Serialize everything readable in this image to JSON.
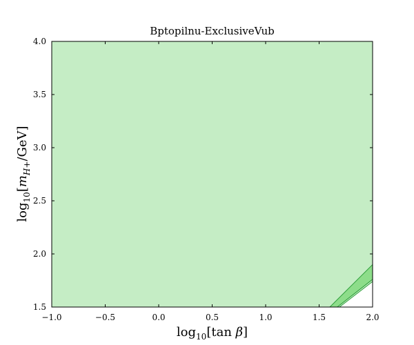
{
  "chart_data": {
    "type": "area",
    "title": "Bptopilnu-ExclusiveVub",
    "xlabel": {
      "prefix": "log",
      "sub": "10",
      "body": "[tan ",
      "var": "β",
      "suffix": "]"
    },
    "ylabel": {
      "prefix": "log",
      "sub": "10",
      "open": "[",
      "var": "m",
      "varsub": "H+",
      "suffix": "/GeV]"
    },
    "xlim": [
      -1.0,
      2.0
    ],
    "ylim": [
      1.5,
      4.0
    ],
    "xticks": [
      -1.0,
      -0.5,
      0.0,
      0.5,
      1.0,
      1.5,
      2.0
    ],
    "xtick_labels": [
      "−1.0",
      "−0.5",
      "0.0",
      "0.5",
      "1.0",
      "1.5",
      "2.0"
    ],
    "yticks": [
      1.5,
      2.0,
      2.5,
      3.0,
      3.5,
      4.0
    ],
    "ytick_labels": [
      "1.5",
      "2.0",
      "2.5",
      "3.0",
      "3.5",
      "4.0"
    ],
    "grid": false,
    "regions": [
      {
        "fill": "#c5edc5",
        "polygon": [
          [
            -1.0,
            1.5
          ],
          [
            1.6,
            1.5
          ],
          [
            2.0,
            1.9
          ],
          [
            2.0,
            4.0
          ],
          [
            -1.0,
            4.0
          ]
        ]
      },
      {
        "fill": "#8ddd8a",
        "stroke": "#2e9e3a",
        "polygon": [
          [
            1.6,
            1.5
          ],
          [
            1.67,
            1.5
          ],
          [
            2.0,
            1.76
          ],
          [
            2.0,
            1.9
          ]
        ]
      },
      {
        "fill": "#c5edc5",
        "stroke": "#2e9e3a",
        "polygon": [
          [
            1.67,
            1.5
          ],
          [
            1.69,
            1.5
          ],
          [
            2.0,
            1.74
          ],
          [
            2.0,
            1.76
          ]
        ]
      }
    ]
  }
}
